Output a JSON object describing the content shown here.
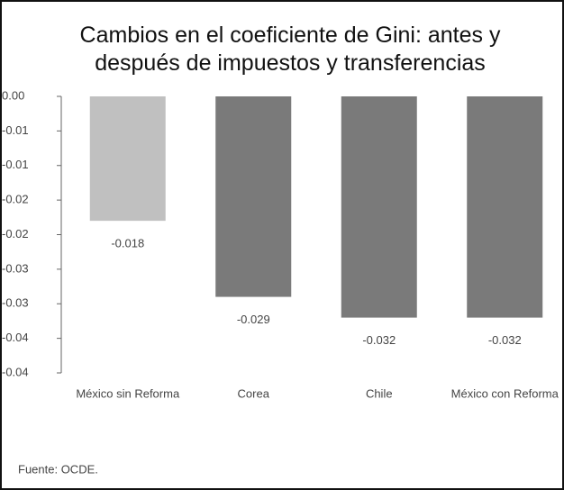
{
  "chart_data": {
    "type": "bar",
    "title": "Cambios en el coeficiente de Gini: antes y después de impuestos y transferencias",
    "categories": [
      "México sin Reforma",
      "Corea",
      "Chile",
      "México con Reforma"
    ],
    "values": [
      -0.018,
      -0.029,
      -0.032,
      -0.032
    ],
    "colors": [
      "#c0c0c0",
      "#7a7a7a",
      "#7a7a7a",
      "#7a7a7a"
    ],
    "ylim": [
      -0.04,
      0
    ],
    "yticks": [
      {
        "value": 0,
        "label": "0.00"
      },
      {
        "value": -0.005,
        "label": "-0.01"
      },
      -0.01,
      {
        "value": -0.015,
        "label": "-0.02"
      },
      -0.02,
      {
        "value": -0.025,
        "label": "-0.03"
      },
      -0.03,
      {
        "value": -0.035,
        "label": "-0.04"
      },
      -0.04
    ],
    "source": "Fuente: OCDE."
  }
}
